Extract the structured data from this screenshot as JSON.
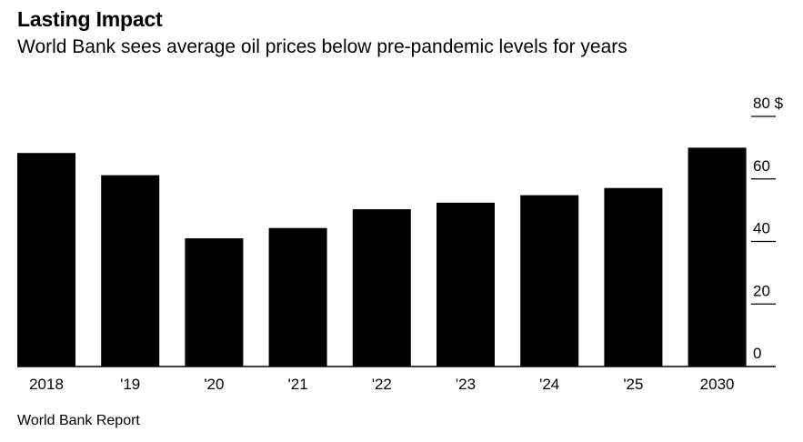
{
  "header": {
    "title": "Lasting Impact",
    "subtitle": "World Bank sees average oil prices below pre-pandemic levels for years"
  },
  "footer": {
    "source": "World Bank Report"
  },
  "chart_data": {
    "type": "bar",
    "categories": [
      "2018",
      "'19",
      "'20",
      "'21",
      "'22",
      "'23",
      "'24",
      "'25",
      "2030"
    ],
    "values": [
      68.3,
      61.2,
      41.0,
      44.3,
      50.3,
      52.4,
      54.8,
      57.1,
      70.0
    ],
    "title": "Lasting Impact",
    "subtitle": "World Bank sees average oil prices below pre-pandemic levels for years",
    "ylim": [
      0,
      80
    ],
    "y_ticks": [
      0,
      20,
      40,
      60,
      80
    ],
    "y_unit": "$",
    "y_axis_side": "right",
    "bar_color": "#000000",
    "grid": false,
    "source": "World Bank Report"
  }
}
